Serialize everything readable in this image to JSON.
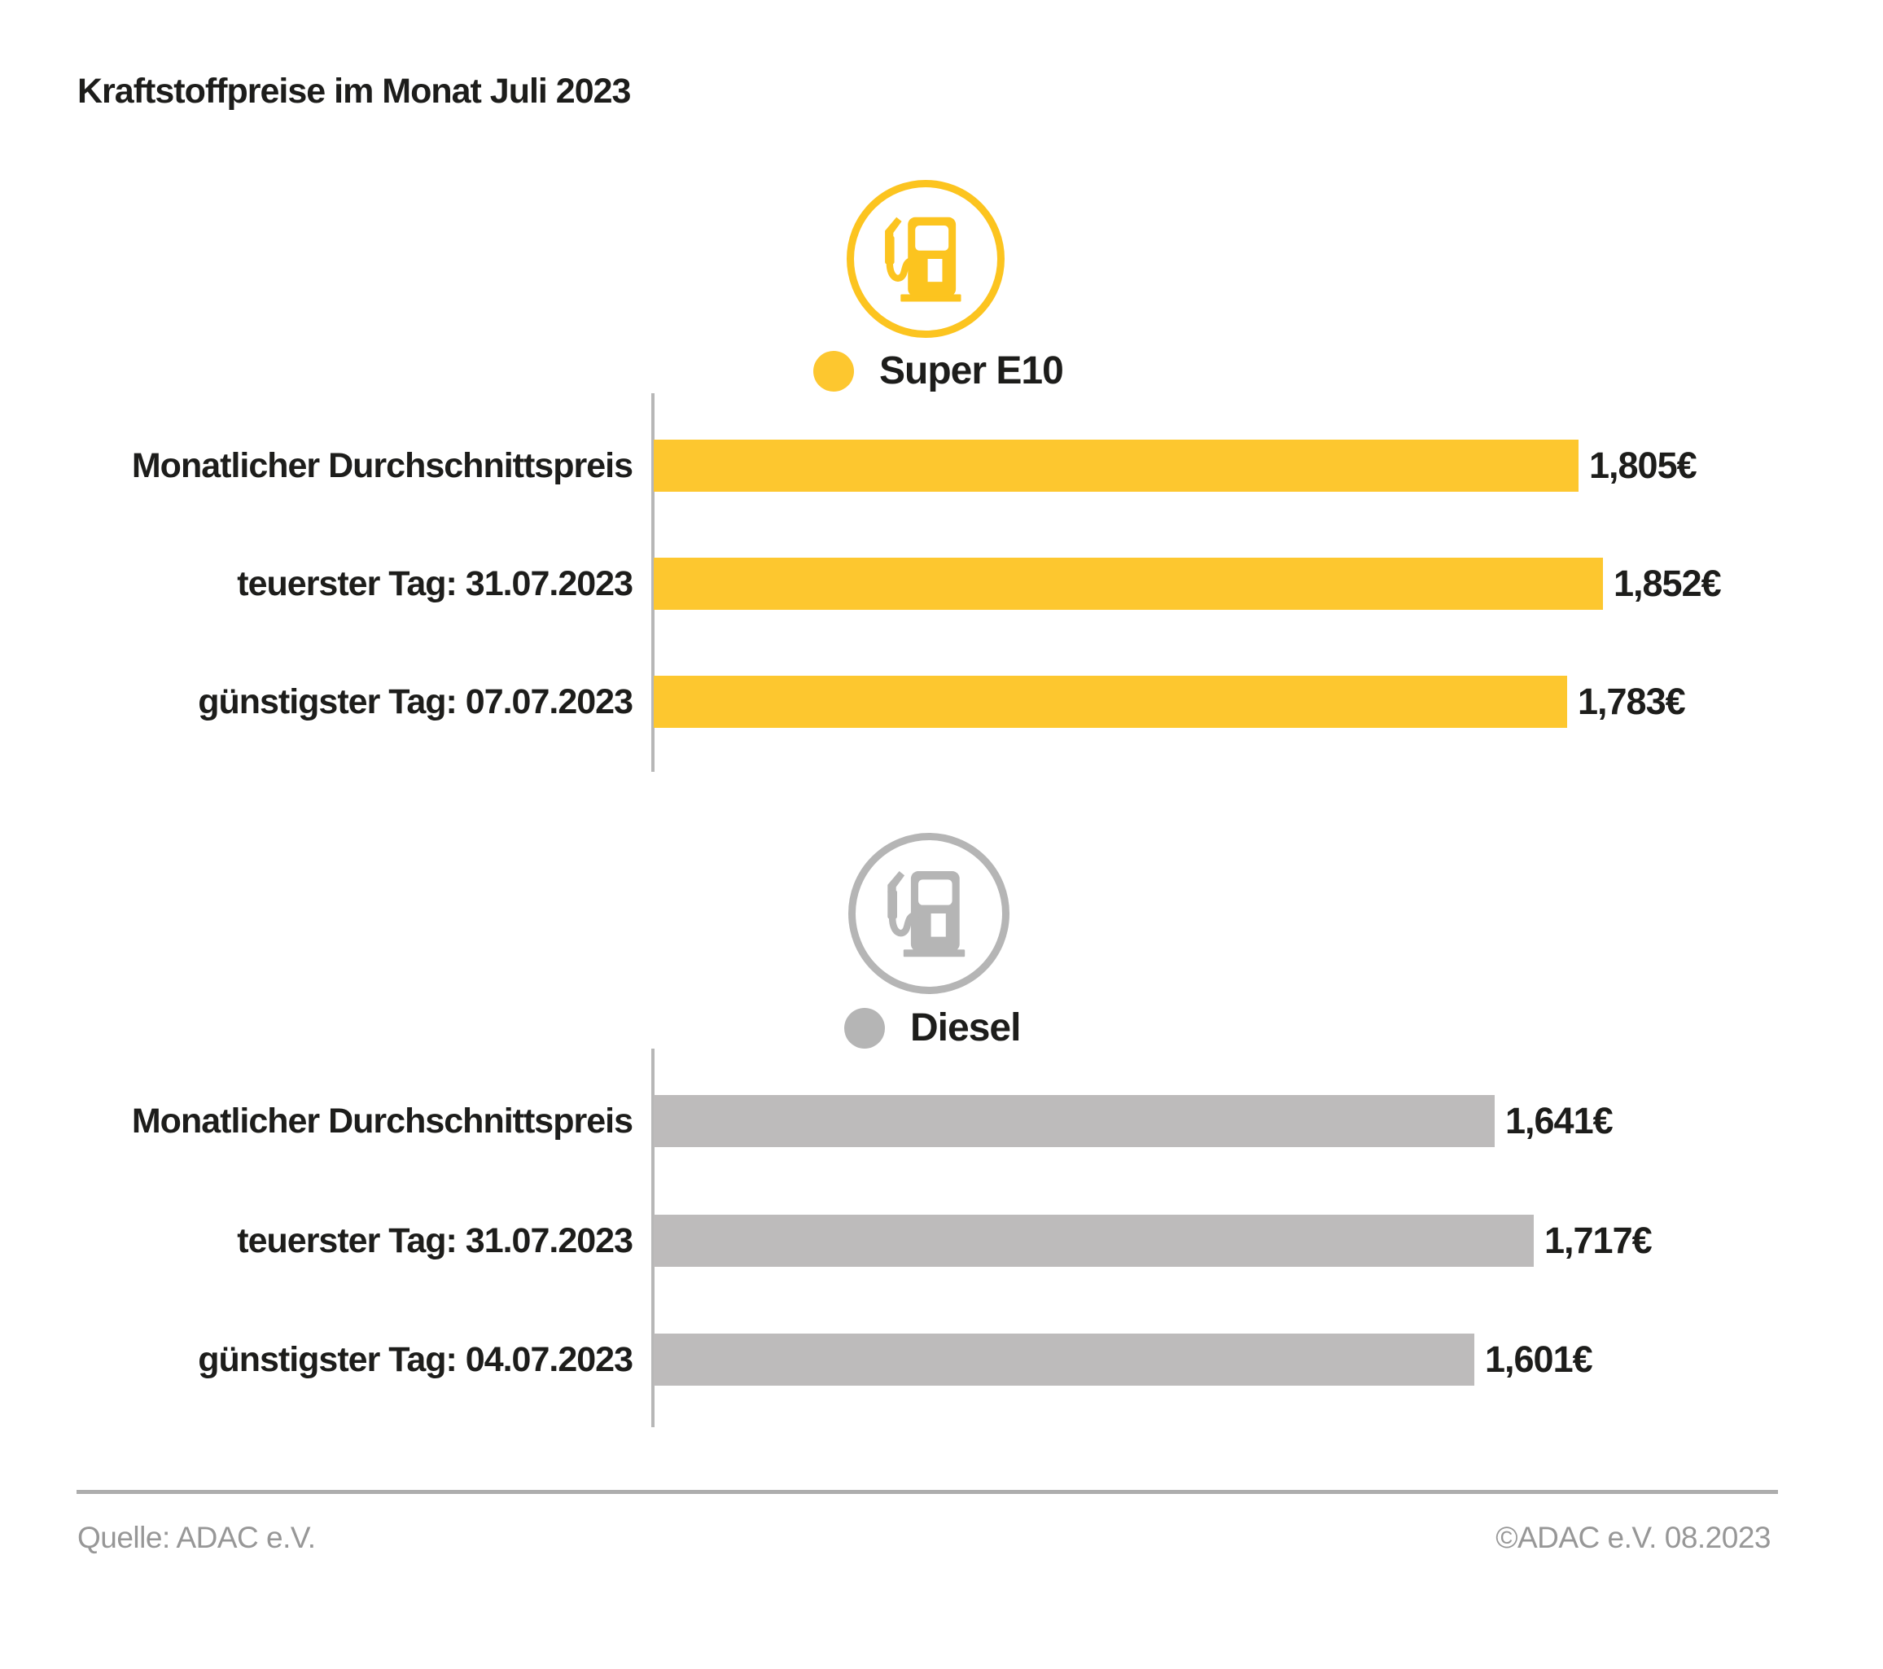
{
  "title": "Kraftstoffpreise im Monat Juli 2023",
  "chart_data": [
    {
      "type": "bar",
      "legend_label": "Super E10",
      "icon": "fuel-pump-icon",
      "color": "#FDC72F",
      "icon_color": "#FCC41F",
      "categories": [
        "Monatlicher Durchschnittspreis",
        "teuerster Tag: 31.07.2023",
        "günstigster Tag: 07.07.2023"
      ],
      "values": [
        1.805,
        1.852,
        1.783
      ],
      "value_labels": [
        "1,805€",
        "1,852€",
        "1,783€"
      ],
      "unit": "€",
      "orientation": "horizontal",
      "xlim": [
        0,
        2.0
      ],
      "grid": false,
      "legend_position": "top-center"
    },
    {
      "type": "bar",
      "legend_label": "Diesel",
      "icon": "fuel-pump-icon",
      "color": "#BDBBBB",
      "icon_color": "#B5B5B5",
      "categories": [
        "Monatlicher Durchschnittspreis",
        "teuerster Tag: 31.07.2023",
        "günstigster Tag: 04.07.2023"
      ],
      "values": [
        1.641,
        1.717,
        1.601
      ],
      "value_labels": [
        "1,641€",
        "1,717€",
        "1,601€"
      ],
      "unit": "€",
      "orientation": "horizontal",
      "xlim": [
        0,
        2.0
      ],
      "grid": false,
      "legend_position": "top-center"
    }
  ],
  "footer": {
    "source": "Quelle: ADAC e.V.",
    "copyright": "©ADAC e.V. 08.2023"
  }
}
